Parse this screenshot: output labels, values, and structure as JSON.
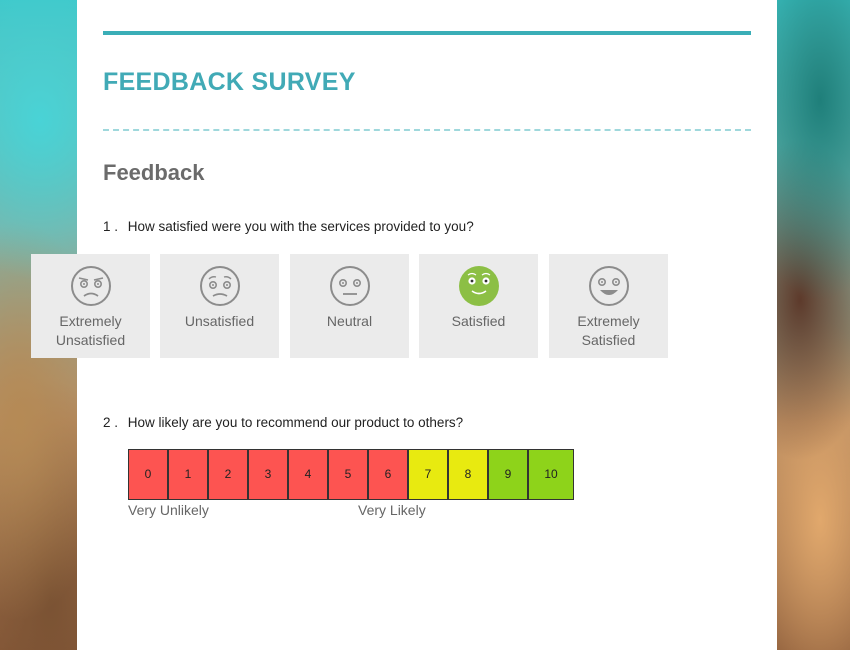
{
  "survey": {
    "title": "FEEDBACK SURVEY",
    "section_title": "Feedback",
    "accent_color": "#3aaeb7"
  },
  "question1": {
    "number": "1 .",
    "text": "How satisfied were you with the services provided to you?",
    "selected": "Satisfied",
    "options": [
      {
        "label": "Extremely Unsatisfied",
        "icon": "very-sad-face-icon"
      },
      {
        "label": "Unsatisfied",
        "icon": "sad-face-icon"
      },
      {
        "label": "Neutral",
        "icon": "neutral-face-icon"
      },
      {
        "label": "Satisfied",
        "icon": "smiling-face-icon"
      },
      {
        "label": "Extremely Satisfied",
        "icon": "laughing-face-icon"
      }
    ],
    "selected_color": "#8cbf45"
  },
  "question2": {
    "number": "2 .",
    "text": "How likely are you to recommend our product to others?",
    "scale": [
      "0",
      "1",
      "2",
      "3",
      "4",
      "5",
      "6",
      "7",
      "8",
      "9",
      "10"
    ],
    "low_label": "Very Unlikely",
    "high_label": "Very Likely",
    "colors": {
      "low": "#fd5451",
      "mid": "#e8ea10",
      "high": "#8ed31a"
    }
  }
}
